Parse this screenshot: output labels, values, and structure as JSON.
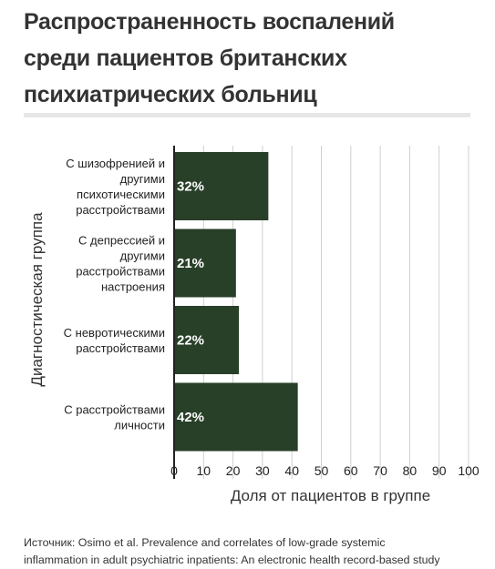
{
  "title_lines": [
    "Распространенность воспалений",
    "среди пациентов британских",
    "психиатрических больниц"
  ],
  "source_lines": [
    "Источник: Osimo et al. Prevalence and correlates of low-grade systemic",
    "inflammation in adult psychiatric inpatients: An electronic health record-based study"
  ],
  "colors": {
    "bar": "#283f28",
    "grid": "#cfcfcf",
    "axis": "#222222",
    "rule": "#e6e6e6"
  },
  "chart_data": {
    "type": "bar",
    "orientation": "horizontal",
    "xlabel": "Доля от пациентов в группе",
    "ylabel": "Диагностическая группа",
    "xlim": [
      0,
      100
    ],
    "xticks": [
      0,
      10,
      20,
      30,
      40,
      50,
      60,
      70,
      80,
      90,
      100
    ],
    "grid": true,
    "categories": [
      [
        "С шизофренией и",
        "другими",
        "психотическими",
        "расстройствами"
      ],
      [
        "С депрессией и",
        "другими",
        "расстройствами",
        "настроения"
      ],
      [
        "С невротическими",
        "расстройствами"
      ],
      [
        "С расстройствами",
        "личности"
      ]
    ],
    "values": [
      32,
      21,
      22,
      42
    ],
    "value_labels": [
      "32%",
      "21%",
      "22%",
      "42%"
    ]
  }
}
